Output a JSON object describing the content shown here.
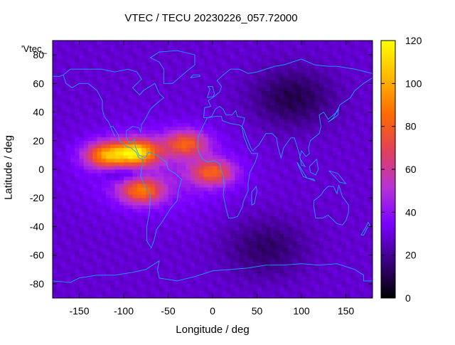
{
  "chart_data": {
    "type": "heatmap",
    "title": "VTEC / TECU 20230226_057.72000",
    "xlabel": "Longitude / deg",
    "ylabel": "Latitude / deg",
    "legend_key": "'Vtec_",
    "xlim": [
      -180,
      180
    ],
    "ylim": [
      -90,
      90
    ],
    "x_ticks": [
      -150,
      -100,
      -50,
      0,
      50,
      100,
      150
    ],
    "y_ticks": [
      -80,
      -60,
      -40,
      -20,
      0,
      20,
      40,
      60,
      80
    ],
    "colorbar": {
      "min": 0,
      "max": 120,
      "ticks": [
        0,
        20,
        40,
        60,
        80,
        100,
        120
      ]
    },
    "colormap": [
      "#000000",
      "#3a0080",
      "#7a00ff",
      "#b832d6",
      "#e0405a",
      "#ff6a00",
      "#ffb800",
      "#ffff00"
    ],
    "grid": "off",
    "coastline_color": "#1aa3ff",
    "approximate_field": {
      "background_vtec": 28,
      "features": [
        {
          "name": "equatorial anomaly crest west",
          "lon": -120,
          "lat": 10,
          "vtec": 95
        },
        {
          "name": "equatorial anomaly crest central",
          "lon": -85,
          "lat": 12,
          "vtec": 110
        },
        {
          "name": "southern crest",
          "lon": -80,
          "lat": -15,
          "vtec": 85
        },
        {
          "name": "Atlantic crest north",
          "lon": -30,
          "lat": 18,
          "vtec": 80
        },
        {
          "name": "Atlantic-Africa band",
          "lon": 0,
          "lat": -2,
          "vtec": 80
        },
        {
          "name": "Asia night low",
          "lon": 90,
          "lat": 50,
          "vtec": 8
        },
        {
          "name": "southern ocean low",
          "lon": 60,
          "lat": -55,
          "vtec": 12
        }
      ]
    }
  }
}
